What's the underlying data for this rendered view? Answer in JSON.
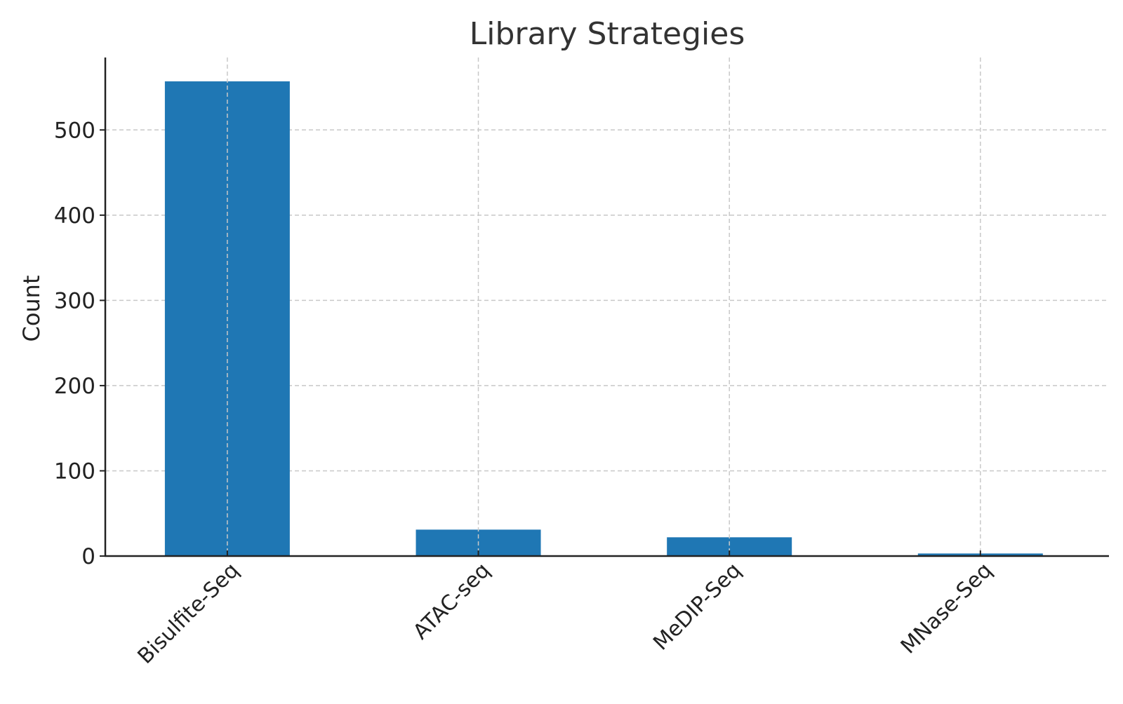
{
  "chart_data": {
    "type": "bar",
    "title": "Library Strategies",
    "xlabel": "",
    "ylabel": "Count",
    "categories": [
      "Bisulfite-Seq",
      "ATAC-seq",
      "MeDIP-Seq",
      "MNase-Seq"
    ],
    "values": [
      557,
      31,
      22,
      3
    ],
    "ylim": [
      0,
      585
    ],
    "yticks": [
      0,
      100,
      200,
      300,
      400,
      500
    ],
    "grid": true,
    "legend": "none",
    "colors": {
      "bar": "#1f77b4",
      "grid": "#c8c8c8",
      "axis": "#222222",
      "text": "#222222",
      "title": "#333333"
    }
  }
}
